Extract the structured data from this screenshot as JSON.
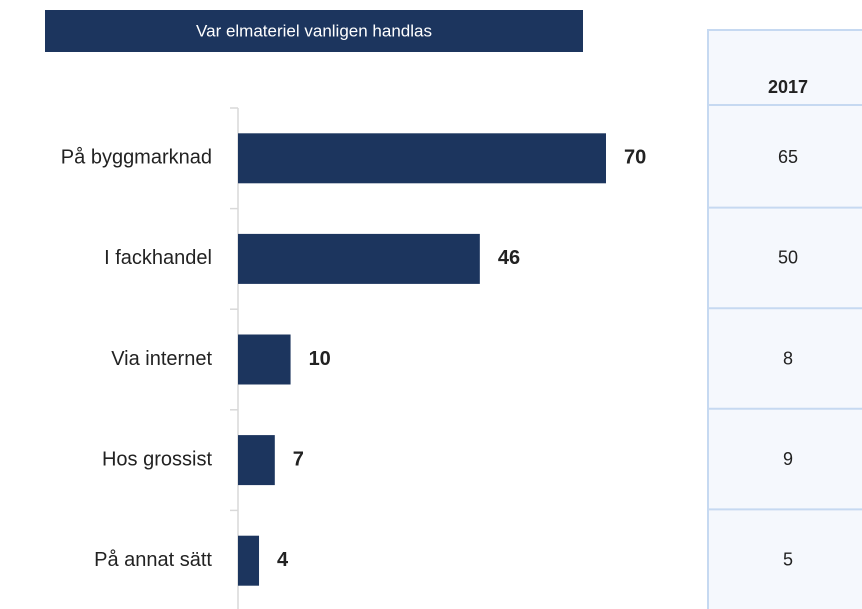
{
  "chart_data": {
    "type": "bar",
    "orientation": "horizontal",
    "title": "Var elmateriel vanligen handlas",
    "categories": [
      "På byggmarknad",
      "I fackhandel",
      "Via internet",
      "Hos grossist",
      "På annat sätt"
    ],
    "values": [
      70,
      46,
      10,
      7,
      4
    ],
    "color": "#1c355e"
  },
  "table": {
    "header": "2017",
    "rows": [
      65,
      50,
      8,
      9,
      5
    ]
  }
}
